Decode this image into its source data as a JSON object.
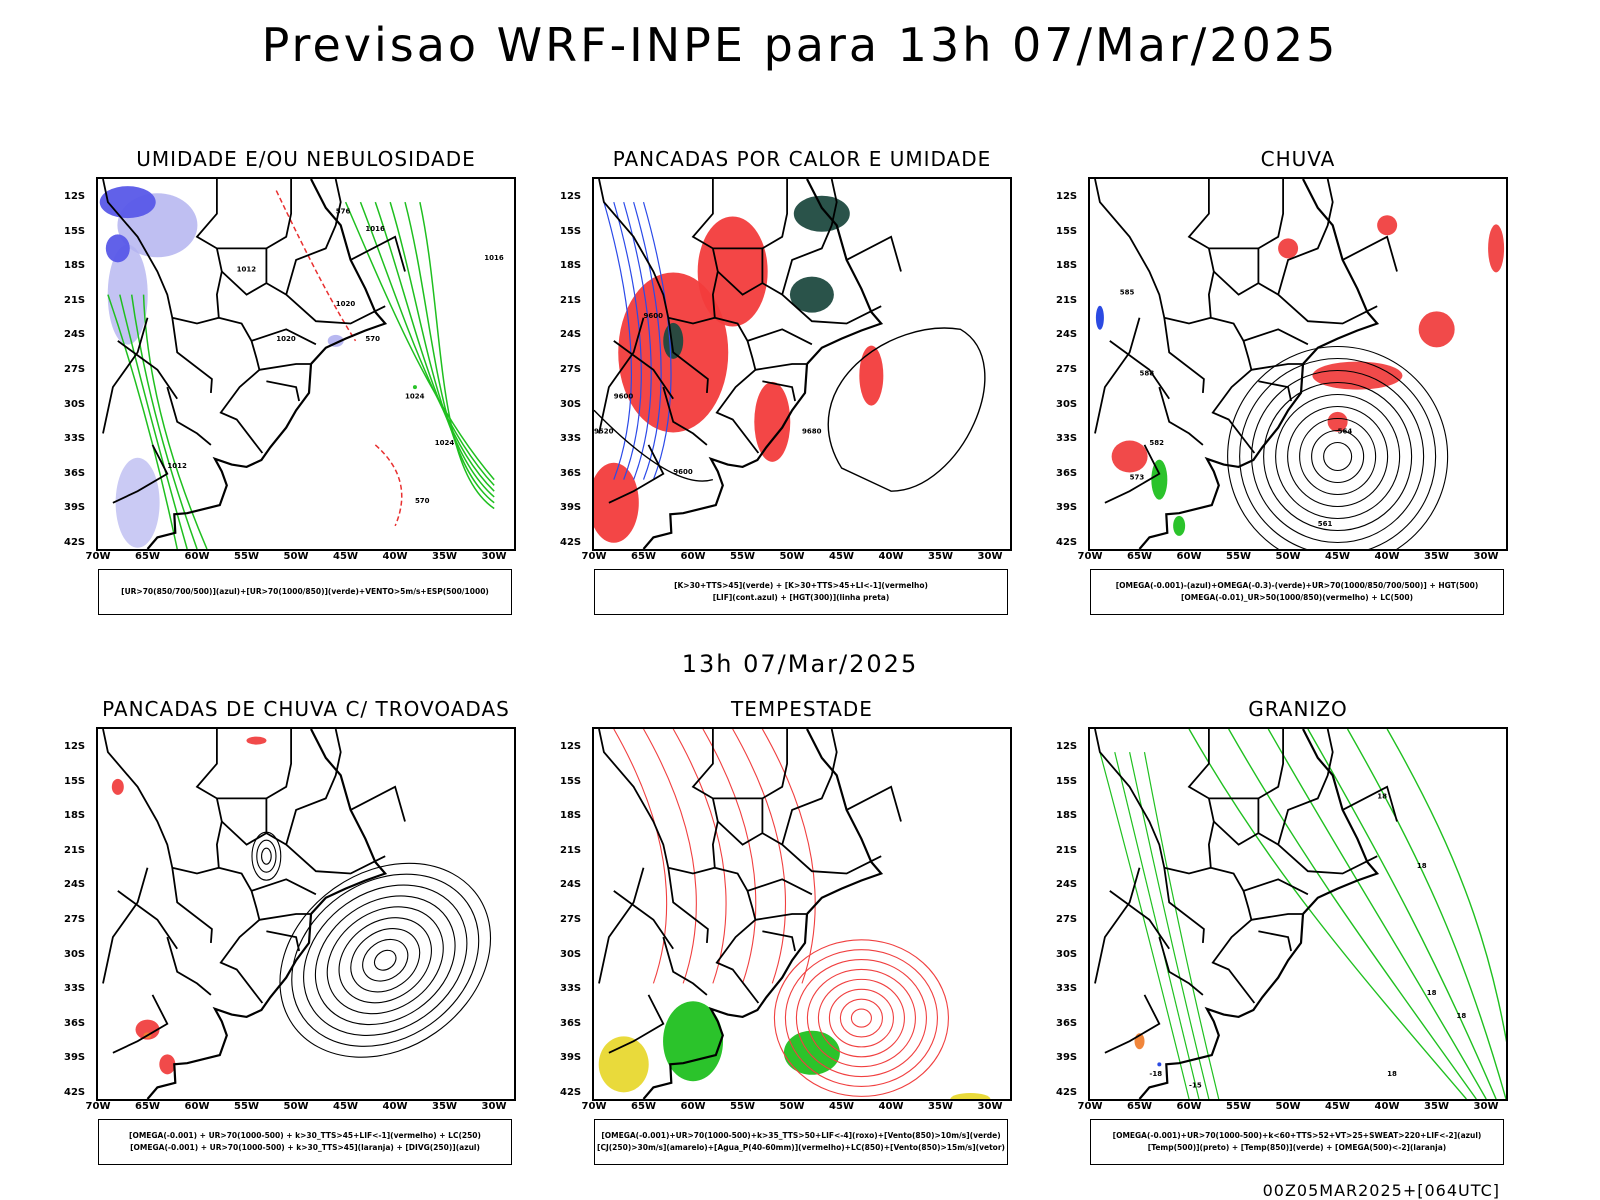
{
  "header": {
    "title": "Previsao WRF-INPE  para 13h 07/Mar/2025",
    "subtitle": "13h 07/Mar/2025",
    "footer": "00Z05MAR2025+[064UTC]"
  },
  "axes": {
    "lat_labels": [
      "12S",
      "15S",
      "18S",
      "21S",
      "24S",
      "27S",
      "30S",
      "33S",
      "36S",
      "39S",
      "42S"
    ],
    "lon_labels": [
      "70W",
      "65W",
      "60W",
      "55W",
      "50W",
      "45W",
      "40W",
      "35W",
      "30W"
    ]
  },
  "panels": [
    {
      "title": "UMIDADE E/OU NEBULOSIDADE",
      "legend": [
        "[UR>70(850/700/500)](azul)+[UR>70(1000/850)](verde)+VENTO>5m/s+ESP(500/1000)"
      ],
      "contour_labels": [
        "1012",
        "1016",
        "1016",
        "1020",
        "1020",
        "1024",
        "1024",
        "1012",
        "570",
        "570",
        "576"
      ],
      "colors": {
        "blue": "#5858e8",
        "lightblue": "#b4b4f0",
        "green": "#1fbf1f",
        "red": "#e83030"
      }
    },
    {
      "title": "PANCADAS POR CALOR E UMIDADE",
      "legend": [
        "[K>30+TTS>45](verde) + [K>30+TTS>45+LI<-1](vermelho)",
        "[LIF](cont.azul) + [HGT(300)](linha preta)"
      ],
      "contour_labels": [
        "9600",
        "9600",
        "9600",
        "9520",
        "9680"
      ],
      "colors": {
        "darkgreen": "#1f4a40",
        "red": "#f23c3c",
        "blue": "#2b4ae8"
      }
    },
    {
      "title": "CHUVA",
      "legend": [
        "[OMEGA(-0.001)-(azul)+OMEGA(-0.3)-(verde)+UR>70(1000/850/700/500)] + HGT(500)",
        "[OMEGA(-0.01)_UR>50(1000/850)(vermelho) + LC(500)"
      ],
      "contour_labels": [
        "564",
        "561",
        "582",
        "573",
        "585",
        "588"
      ],
      "colors": {
        "red": "#f04040",
        "blue": "#2040e0",
        "green": "#20c020"
      }
    },
    {
      "title": "PANCADAS DE CHUVA C/ TROVOADAS",
      "legend": [
        "[OMEGA(-0.001) + UR>70(1000-500) + k>30_TTS>45+LIF<-1](vermelho) + LC(250)",
        "[OMEGA(-0.001) + UR>70(1000-500) + k>30_TTS>45](laranja) + [DIVG(250)](azul)"
      ],
      "contour_labels": [],
      "colors": {
        "red": "#f04040",
        "orange": "#f08030"
      }
    },
    {
      "title": "TEMPESTADE",
      "legend": [
        "[OMEGA(-0.001)+UR>70(1000-500)+k>35_TTS>50+LIF<-4](roxo)+[Vento(850)>10m/s](verde)",
        "[CJ(250)>30m/s](amarelo)+[Agua_P(40-60mm)](vermelho)+LC(850)+[Vento(850)>15m/s](vetor)"
      ],
      "contour_labels": [],
      "colors": {
        "green": "#20c020",
        "yellow": "#e8d830",
        "red": "#f04040"
      }
    },
    {
      "title": "GRANIZO",
      "legend": [
        "[OMEGA(-0.001)+UR>70(1000-500)+k<60+TTS>52+VT>25+SWEAT>220+LIF<-2](azul)",
        "[Temp(500)](preto) + [Temp(850)](verde) + [OMEGA(500)<-2](laranja)"
      ],
      "contour_labels": [
        "18",
        "18",
        "18",
        "18",
        "18",
        "-18",
        "-15"
      ],
      "colors": {
        "green": "#20c020",
        "orange": "#f08030",
        "blue": "#2040e0"
      }
    }
  ]
}
